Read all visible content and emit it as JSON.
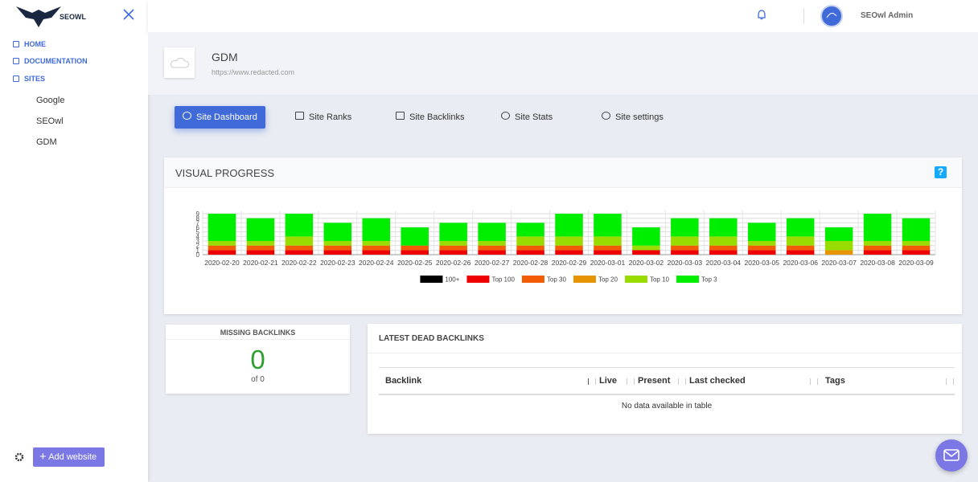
{
  "sidebar": {
    "logo": "SEOWL",
    "nav": [
      "HOME",
      "DOCUMENTATION",
      "SITES"
    ],
    "sites": [
      "Google",
      "SEOwl",
      "GDM"
    ],
    "add_button": "Add website"
  },
  "header": {
    "user": "SEOwl Admin"
  },
  "site": {
    "name": "GDM",
    "url": "https://www.redacted.com"
  },
  "tabs": [
    "Site Dashboard",
    "Site Ranks",
    "Site Backlinks",
    "Site Stats",
    "Site settings"
  ],
  "progress": {
    "title": "VISUAL PROGRESS",
    "help": "?"
  },
  "chart_data": {
    "type": "stacked-bar",
    "categories": [
      "2020-02-20",
      "2020-02-21",
      "2020-02-22",
      "2020-02-23",
      "2020-02-24",
      "2020-02-25",
      "2020-02-26",
      "2020-02-27",
      "2020-02-28",
      "2020-02-29",
      "2020-03-01",
      "2020-03-02",
      "2020-03-03",
      "2020-03-04",
      "2020-03-05",
      "2020-03-06",
      "2020-03-07",
      "2020-03-08",
      "2020-03-09"
    ],
    "series": [
      {
        "name": "100+",
        "color": "#000000",
        "values": [
          0,
          0,
          0,
          0,
          0,
          0,
          0,
          0,
          0,
          0,
          0,
          0,
          0,
          0,
          0,
          0,
          0,
          0,
          0
        ]
      },
      {
        "name": "Top 100",
        "color": "#ee0000",
        "values": [
          1,
          1,
          1,
          1,
          1,
          1,
          1,
          1,
          1,
          1,
          1,
          1,
          1,
          1,
          1,
          1,
          0,
          1,
          1
        ]
      },
      {
        "name": "Top 30",
        "color": "#f25c05",
        "values": [
          1,
          1,
          1,
          1,
          1,
          1,
          1,
          1,
          1,
          1,
          1,
          0,
          1,
          1,
          1,
          1,
          0,
          1,
          1
        ]
      },
      {
        "name": "Top 20",
        "color": "#e69500",
        "values": [
          0,
          0,
          0,
          0,
          0,
          0,
          0,
          0,
          0,
          0,
          0,
          0,
          0,
          0,
          0,
          0,
          1,
          0,
          0
        ]
      },
      {
        "name": "Top 10",
        "color": "#99dd00",
        "values": [
          1,
          1,
          2,
          1,
          1,
          0,
          1,
          1,
          2,
          2,
          2,
          1,
          2,
          2,
          1,
          2,
          2,
          1,
          1
        ]
      },
      {
        "name": "Top 3",
        "color": "#00ee00",
        "values": [
          6,
          5,
          5,
          4,
          5,
          4,
          4,
          4,
          3,
          5,
          5,
          4,
          4,
          4,
          4,
          4,
          3,
          6,
          5
        ]
      }
    ],
    "ylim": [
      0,
      9
    ],
    "yticks": [
      0,
      1,
      2,
      3,
      4,
      5,
      6,
      7,
      8,
      9
    ],
    "grid": true
  },
  "missing": {
    "title": "MISSING BACKLINKS",
    "value": 0,
    "of": "of 0"
  },
  "dead": {
    "title": "LATEST DEAD BACKLINKS",
    "columns": [
      "Backlink",
      "Live",
      "Present",
      "Last checked",
      "Tags"
    ],
    "empty": "No data available in table"
  }
}
